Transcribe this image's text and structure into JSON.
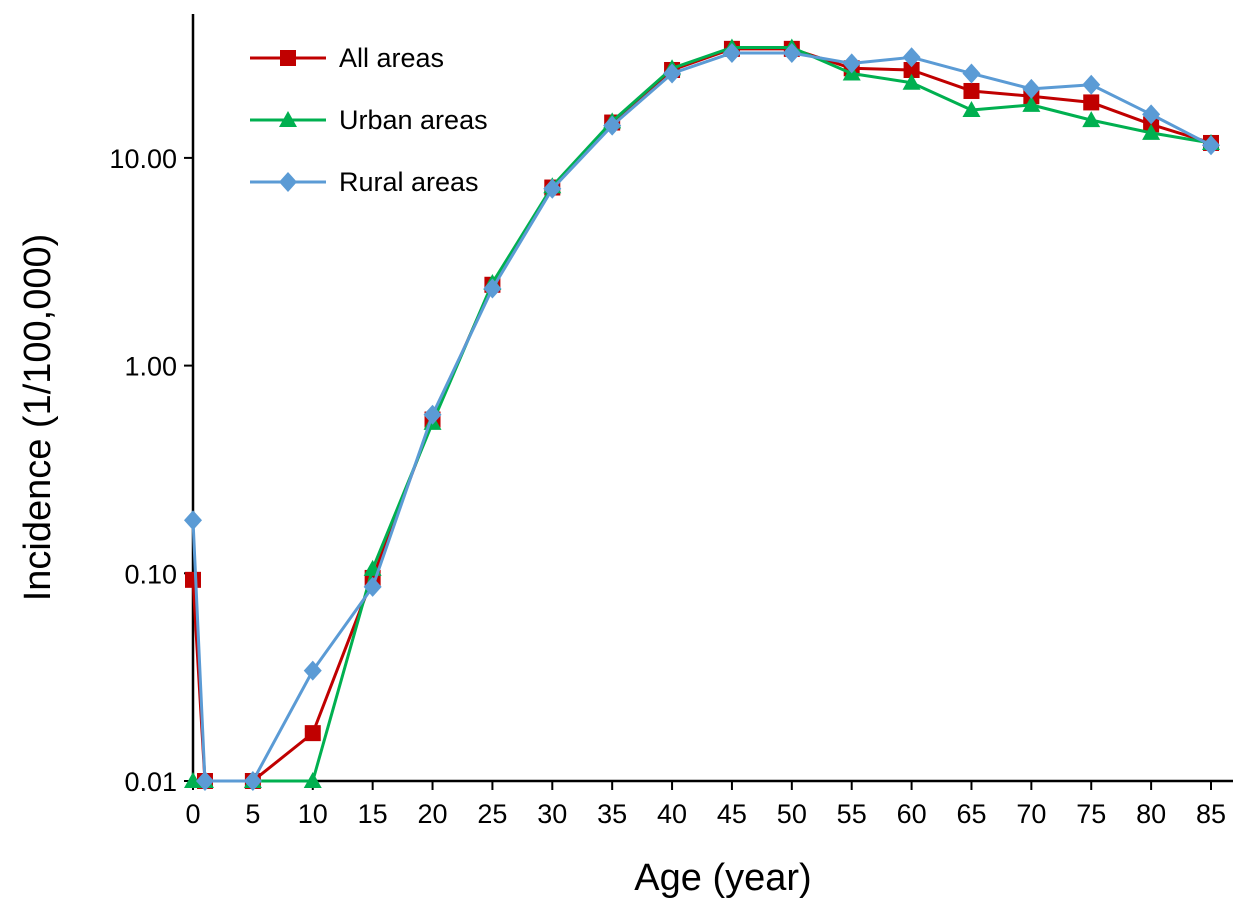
{
  "chart_data": {
    "type": "line",
    "title": "",
    "xlabel": "Age (year)",
    "ylabel": "Incidence (1/100,000)",
    "y_scale": "log",
    "ylim": [
      0.01,
      40
    ],
    "xlim": [
      0,
      86
    ],
    "x_tick_values": [
      0,
      5,
      10,
      15,
      20,
      25,
      30,
      35,
      40,
      45,
      50,
      55,
      60,
      65,
      70,
      75,
      80,
      85
    ],
    "x_tick_labels": [
      "0",
      "5",
      "10",
      "15",
      "20",
      "25",
      "30",
      "35",
      "40",
      "45",
      "50",
      "55",
      "60",
      "65",
      "70",
      "75",
      "80",
      "85"
    ],
    "y_tick_values": [
      0.01,
      0.1,
      1,
      10
    ],
    "y_tick_labels": [
      "0.01",
      "0.10",
      "1.00",
      "10.00"
    ],
    "grid": false,
    "legend_position": "top-left",
    "x": [
      0,
      1,
      5,
      10,
      15,
      20,
      25,
      30,
      35,
      40,
      45,
      50,
      55,
      60,
      65,
      70,
      75,
      80,
      85
    ],
    "series": [
      {
        "name": "All areas",
        "color": "#C00000",
        "marker": "square",
        "values": [
          0.093,
          0.01,
          0.01,
          0.017,
          0.095,
          0.55,
          2.45,
          7.2,
          14.8,
          26.5,
          33.5,
          33.5,
          27.0,
          26.5,
          21.0,
          19.8,
          18.5,
          14.5,
          11.8
        ]
      },
      {
        "name": "Urban areas",
        "color": "#00B050",
        "marker": "triangle",
        "values": [
          0.01,
          0.01,
          0.01,
          0.01,
          0.105,
          0.53,
          2.5,
          7.3,
          15.0,
          27.0,
          34.0,
          34.0,
          25.5,
          23.0,
          17.0,
          18.0,
          15.2,
          13.2,
          11.8
        ]
      },
      {
        "name": "Rural areas",
        "color": "#5B9BD5",
        "marker": "diamond",
        "values": [
          0.18,
          0.01,
          0.01,
          0.034,
          0.086,
          0.58,
          2.35,
          7.1,
          14.3,
          25.5,
          32.0,
          32.0,
          28.5,
          30.5,
          25.5,
          21.5,
          22.5,
          16.2,
          11.5
        ]
      }
    ]
  }
}
